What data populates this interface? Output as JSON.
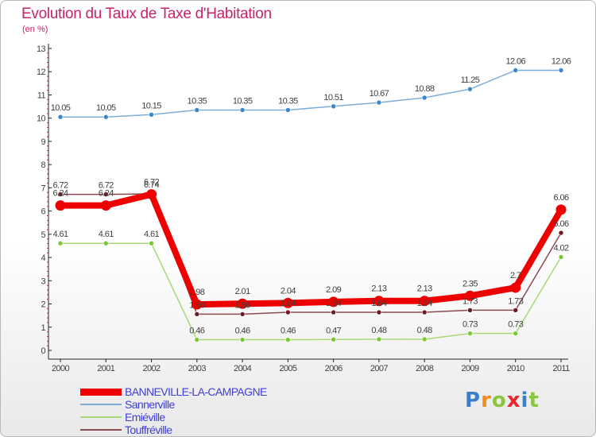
{
  "chart_data": {
    "type": "line",
    "title": "Evolution du Taux de Taxe d'Habitation",
    "subtitle": "(en %)",
    "x": [
      "2000",
      "2001",
      "2002",
      "2003",
      "2004",
      "2005",
      "2006",
      "2007",
      "2008",
      "2009",
      "2010",
      "2011"
    ],
    "ylim": [
      0,
      13
    ],
    "y_ticks": [
      "0",
      "1",
      "2",
      "3",
      "4",
      "5",
      "6",
      "7",
      "8",
      "9",
      "10",
      "11",
      "12",
      "13"
    ],
    "grid": false,
    "legend_position": "bottom-left",
    "series": [
      {
        "name": "BANNEVILLE-LA-CAMPAGNE",
        "color": "#ee0000",
        "marker_color": "#ee0000",
        "emphasis": true,
        "values": [
          6.24,
          6.24,
          6.72,
          1.98,
          2.01,
          2.04,
          2.09,
          2.13,
          2.13,
          2.35,
          2.7,
          6.06
        ],
        "labels": [
          "6.24",
          "6.24",
          "6.72",
          "1.98",
          "2.01",
          "2.04",
          "2.09",
          "2.13",
          "2.13",
          "2.35",
          "2.7",
          "6.06"
        ]
      },
      {
        "name": "Sannerville",
        "color": "#7eaed6",
        "marker_color": "#3a86c9",
        "values": [
          10.05,
          10.05,
          10.15,
          10.35,
          10.35,
          10.35,
          10.51,
          10.67,
          10.88,
          11.25,
          12.06,
          12.06
        ],
        "labels": [
          "10.05",
          "10.05",
          "10.15",
          "10.35",
          "10.35",
          "10.35",
          "10.51",
          "10.67",
          "10.88",
          "11.25",
          "12.06",
          "12.06"
        ]
      },
      {
        "name": "Emiéville",
        "color": "#a8d878",
        "marker_color": "#7cc832",
        "values": [
          4.61,
          4.61,
          4.61,
          0.46,
          0.46,
          0.46,
          0.47,
          0.48,
          0.48,
          0.73,
          0.73,
          4.02
        ],
        "labels": [
          "4.61",
          "4.61",
          "4.61",
          "0.46",
          "0.46",
          "0.46",
          "0.47",
          "0.48",
          "0.48",
          "0.73",
          "0.73",
          "4.02"
        ]
      },
      {
        "name": "Touffréville",
        "color": "#8a4a52",
        "marker_color": "#6a1b26",
        "values": [
          6.72,
          6.72,
          6.74,
          1.56,
          1.56,
          1.64,
          1.64,
          1.64,
          1.64,
          1.73,
          1.73,
          5.06
        ],
        "labels": [
          "6.72",
          "6.72",
          "6.74",
          "1.56",
          "1.56",
          "1.64",
          "1.64",
          "1.64",
          "1.64",
          "1.73",
          "1.73",
          "5.06"
        ]
      }
    ]
  },
  "logo": {
    "letters": [
      "P",
      "r",
      "o",
      "x",
      "i",
      "t"
    ]
  }
}
